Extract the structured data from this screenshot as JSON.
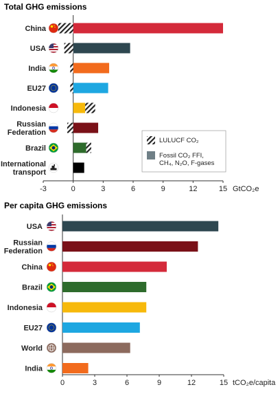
{
  "chart_data": [
    {
      "type": "bar",
      "orientation": "horizontal",
      "stacked": true,
      "title": "Total GHG emissions",
      "unit_label": "GtCO₂e",
      "categories": [
        {
          "label": [
            "China"
          ],
          "flag": "china"
        },
        {
          "label": [
            "USA"
          ],
          "flag": "usa"
        },
        {
          "label": [
            "India"
          ],
          "flag": "india"
        },
        {
          "label": [
            "EU27"
          ],
          "flag": "eu"
        },
        {
          "label": [
            "Indonesia"
          ],
          "flag": "indonesia"
        },
        {
          "label": [
            "Russian",
            "Federation"
          ],
          "flag": "russia"
        },
        {
          "label": [
            "Brazil"
          ],
          "flag": "brazil"
        },
        {
          "label": [
            "International",
            "transport"
          ],
          "flag": "ship"
        }
      ],
      "series": [
        {
          "name": "Fossil CO₂ FFI, CH₄, N₂O, F-gases",
          "values": [
            15.0,
            5.7,
            3.6,
            3.5,
            1.2,
            2.5,
            1.3,
            1.1
          ]
        },
        {
          "name": "LULUCF CO₂",
          "values": [
            -1.5,
            -0.9,
            -0.3,
            -0.3,
            1.0,
            -0.6,
            0.5,
            0
          ]
        }
      ],
      "colors": [
        "#d42a3a",
        "#2e4750",
        "#f26b1d",
        "#1ea7e1",
        "#f7b90b",
        "#7a1118",
        "#2e6b2c",
        "#000000"
      ],
      "xlim": [
        -3,
        15
      ],
      "ticks": [
        -3,
        0,
        3,
        6,
        9,
        12,
        15
      ],
      "legend": {
        "position": "bottom-right",
        "items": [
          {
            "label_lines": [
              "LULUCF CO₂"
            ],
            "style": "hatched"
          },
          {
            "label_lines": [
              "Fossil CO₂ FFI,",
              "CH₄, N₂O, F-gases"
            ],
            "style": "solid"
          }
        ]
      }
    },
    {
      "type": "bar",
      "orientation": "horizontal",
      "title": "Per capita GHG emissions",
      "unit_label": "tCO₂e/capita",
      "categories": [
        {
          "label": [
            "USA"
          ],
          "flag": "usa"
        },
        {
          "label": [
            "Russian",
            "Federation"
          ],
          "flag": "russia"
        },
        {
          "label": [
            "China"
          ],
          "flag": "china"
        },
        {
          "label": [
            "Brazil"
          ],
          "flag": "brazil"
        },
        {
          "label": [
            "Indonesia"
          ],
          "flag": "indonesia"
        },
        {
          "label": [
            "EU27"
          ],
          "flag": "eu"
        },
        {
          "label": [
            "World"
          ],
          "flag": "world"
        },
        {
          "label": [
            "India"
          ],
          "flag": "india"
        }
      ],
      "values": [
        14.5,
        12.6,
        9.7,
        7.8,
        7.8,
        7.2,
        6.3,
        2.4
      ],
      "colors": [
        "#2e4750",
        "#7a1118",
        "#d42a3a",
        "#2e6b2c",
        "#f7b90b",
        "#1ea7e1",
        "#8c6a5d",
        "#f26b1d"
      ],
      "xlim": [
        0,
        15
      ],
      "ticks": [
        0,
        3,
        6,
        9,
        12,
        15
      ]
    }
  ]
}
